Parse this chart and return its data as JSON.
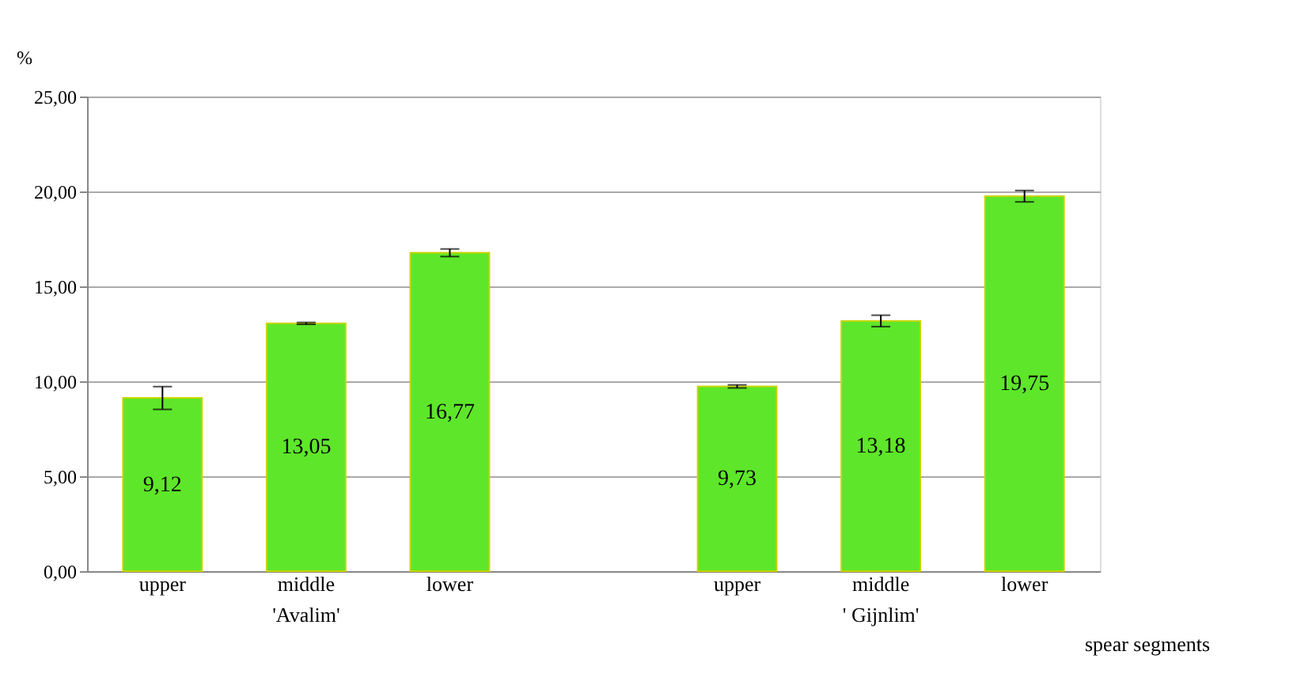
{
  "chart_data": {
    "type": "bar",
    "categories": [
      "upper",
      "middle",
      "lower",
      null,
      "upper",
      "middle",
      "lower"
    ],
    "values": [
      9.12,
      13.05,
      16.77,
      null,
      9.73,
      13.18,
      19.75
    ],
    "errors": [
      0.6,
      0.05,
      0.2,
      null,
      0.08,
      0.3,
      0.3
    ],
    "value_labels": [
      "9,12",
      "13,05",
      "16,77",
      null,
      "9,73",
      "13,18",
      "19,75"
    ],
    "color": "#5ee62a",
    "ylabel": "%",
    "xlabel": "spear segments",
    "annotations": [
      "'Avalim'",
      "' Gijnlim'"
    ],
    "ylim": [
      0,
      25
    ],
    "yticks": [
      {
        "value": 0,
        "label": "0,00"
      },
      {
        "value": 5,
        "label": "5,00"
      },
      {
        "value": 10,
        "label": "10,00"
      },
      {
        "value": 15,
        "label": "15,00"
      },
      {
        "value": 20,
        "label": "20,00"
      },
      {
        "value": 25,
        "label": "25,00"
      }
    ],
    "grid": "y"
  }
}
